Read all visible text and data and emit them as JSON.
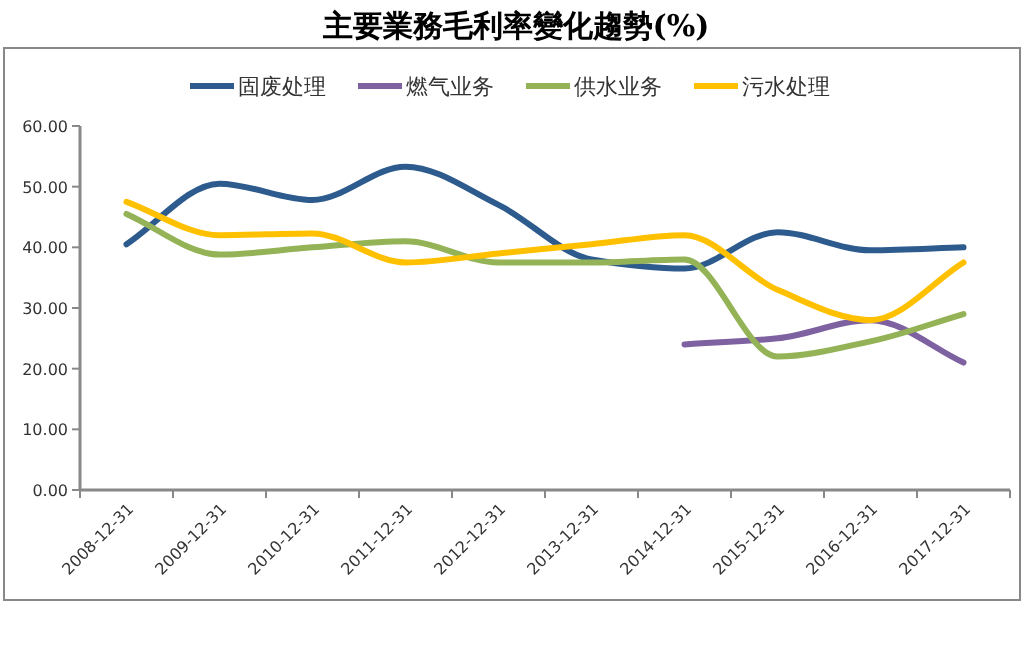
{
  "chart_data": {
    "type": "line",
    "title": "主要業務毛利率變化趨勢(%)",
    "categories": [
      "2008-12-31",
      "2009-12-31",
      "2010-12-31",
      "2011-12-31",
      "2012-12-31",
      "2013-12-31",
      "2014-12-31",
      "2015-12-31",
      "2016-12-31",
      "2017-12-31"
    ],
    "series": [
      {
        "name": "固废处理",
        "color": "#2e5b8d",
        "values": [
          40.5,
          50.5,
          47.8,
          53.3,
          47,
          38,
          36.5,
          42.5,
          39.5,
          40
        ]
      },
      {
        "name": "燃气业务",
        "color": "#7e61a0",
        "values": [
          null,
          null,
          null,
          null,
          null,
          null,
          24,
          25,
          28,
          21
        ]
      },
      {
        "name": "供水业务",
        "color": "#93b356",
        "values": [
          45.5,
          38.8,
          40,
          41,
          37.5,
          37.5,
          38,
          22,
          24.5,
          29
        ]
      },
      {
        "name": "污水处理",
        "color": "#ffc000",
        "values": [
          47.5,
          42,
          42.3,
          37.5,
          39,
          40.5,
          42,
          33,
          28,
          37.5
        ]
      }
    ],
    "ylim": [
      0,
      60
    ],
    "yticks": [
      {
        "value": 0,
        "label": "0.00"
      },
      {
        "value": 10,
        "label": "10.00"
      },
      {
        "value": 20,
        "label": "20.00"
      },
      {
        "value": 30,
        "label": "30.00"
      },
      {
        "value": 40,
        "label": "40.00"
      },
      {
        "value": 50,
        "label": "50.00"
      },
      {
        "value": 60,
        "label": "60.00"
      }
    ],
    "grid": false,
    "legend": "top",
    "marker": "none",
    "line_style": "solid"
  }
}
